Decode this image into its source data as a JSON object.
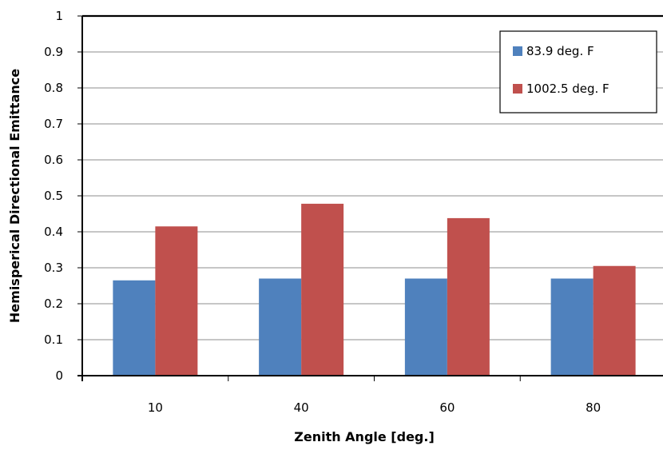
{
  "chart_data": {
    "type": "bar",
    "title": "",
    "xlabel": "Zenith Angle [deg.]",
    "ylabel": "Hemisperical Directional Emittance",
    "categories": [
      "10",
      "40",
      "60",
      "80"
    ],
    "ylim": [
      0,
      1
    ],
    "yticks": [
      "0",
      "0.1",
      "0.2",
      "0.3",
      "0.4",
      "0.5",
      "0.6",
      "0.7",
      "0.8",
      "0.9",
      "1"
    ],
    "grid": true,
    "legend_position": "top-right",
    "series": [
      {
        "name": "83.9 deg. F",
        "color": "#4f81bd",
        "values": [
          0.265,
          0.27,
          0.27,
          0.27
        ]
      },
      {
        "name": "1002.5 deg. F",
        "color": "#c0504d",
        "values": [
          0.415,
          0.478,
          0.438,
          0.305
        ]
      }
    ]
  }
}
